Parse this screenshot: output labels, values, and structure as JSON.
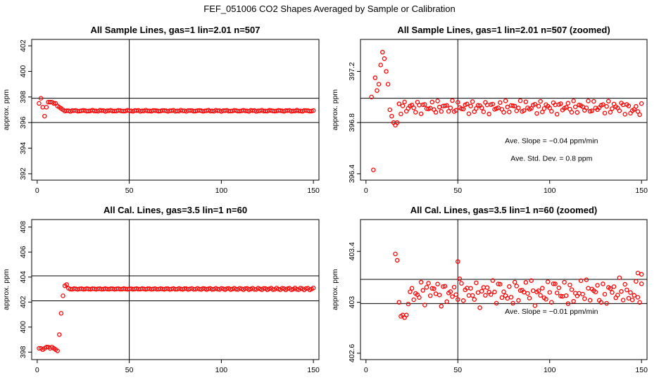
{
  "figure_title": "FEF_051006  CO2 Shapes Averaged by Sample or Calibration",
  "colors": {
    "points": "#ff0000",
    "axes": "#000000"
  },
  "chart_data": [
    {
      "type": "scatter",
      "title": "All Sample Lines, gas=1 lin=2.01 n=507",
      "ylabel": "approx. ppm",
      "xlim": [
        -3,
        153
      ],
      "ylim": [
        391.5,
        402.5
      ],
      "xticks": [
        0,
        50,
        100,
        150
      ],
      "yticks": [
        392,
        394,
        396,
        398,
        400,
        402
      ],
      "vline": 50,
      "hlines": [
        396.0,
        397.9
      ],
      "annotations": [],
      "series": [
        {
          "marker": "circle",
          "color": "#ff0000",
          "gen": "s1"
        }
      ]
    },
    {
      "type": "scatter",
      "title": "All Sample Lines, gas=1 lin=2.01 n=507 (zoomed)",
      "ylabel": "approx. ppm",
      "xlim": [
        -3,
        153
      ],
      "ylim": [
        396.35,
        397.45
      ],
      "xticks": [
        0,
        50,
        100,
        150
      ],
      "yticks": [
        396.4,
        396.8,
        397.2
      ],
      "vline": 50,
      "hlines": [
        396.8,
        396.99
      ],
      "annotations": [
        {
          "text": "Ave. Slope =  −0.04  ppm/min",
          "x": 101,
          "y": 396.64
        },
        {
          "text": "Ave. Std. Dev. =  0.8  ppm",
          "x": 101,
          "y": 396.5
        }
      ],
      "series": [
        {
          "marker": "circle",
          "color": "#ff0000",
          "gen": "s2"
        }
      ]
    },
    {
      "type": "scatter",
      "title": "All Cal. Lines, gas=3.5 lin=1 n=60",
      "ylabel": "approx. ppm",
      "xlim": [
        -3,
        153
      ],
      "ylim": [
        397.4,
        408.6
      ],
      "xticks": [
        0,
        50,
        100,
        150
      ],
      "yticks": [
        398,
        400,
        402,
        404,
        406,
        408
      ],
      "vline": 50,
      "hlines": [
        402.1,
        404.1
      ],
      "annotations": [],
      "series": [
        {
          "marker": "circle",
          "color": "#ff0000",
          "gen": "c1"
        }
      ]
    },
    {
      "type": "scatter",
      "title": "All Cal. Lines, gas=3.5 lin=1 n=60 (zoomed)",
      "ylabel": "approx. ppm",
      "xlim": [
        -3,
        153
      ],
      "ylim": [
        402.55,
        403.65
      ],
      "xticks": [
        0,
        50,
        100,
        150
      ],
      "yticks": [
        402.6,
        403.0,
        403.4
      ],
      "vline": 50,
      "hlines": [
        402.99,
        403.18
      ],
      "annotations": [
        {
          "text": "Ave. Slope =  −0.01  ppm/min",
          "x": 101,
          "y": 402.91
        }
      ],
      "series": [
        {
          "marker": "circle",
          "color": "#ff0000",
          "gen": "c2"
        }
      ]
    }
  ]
}
